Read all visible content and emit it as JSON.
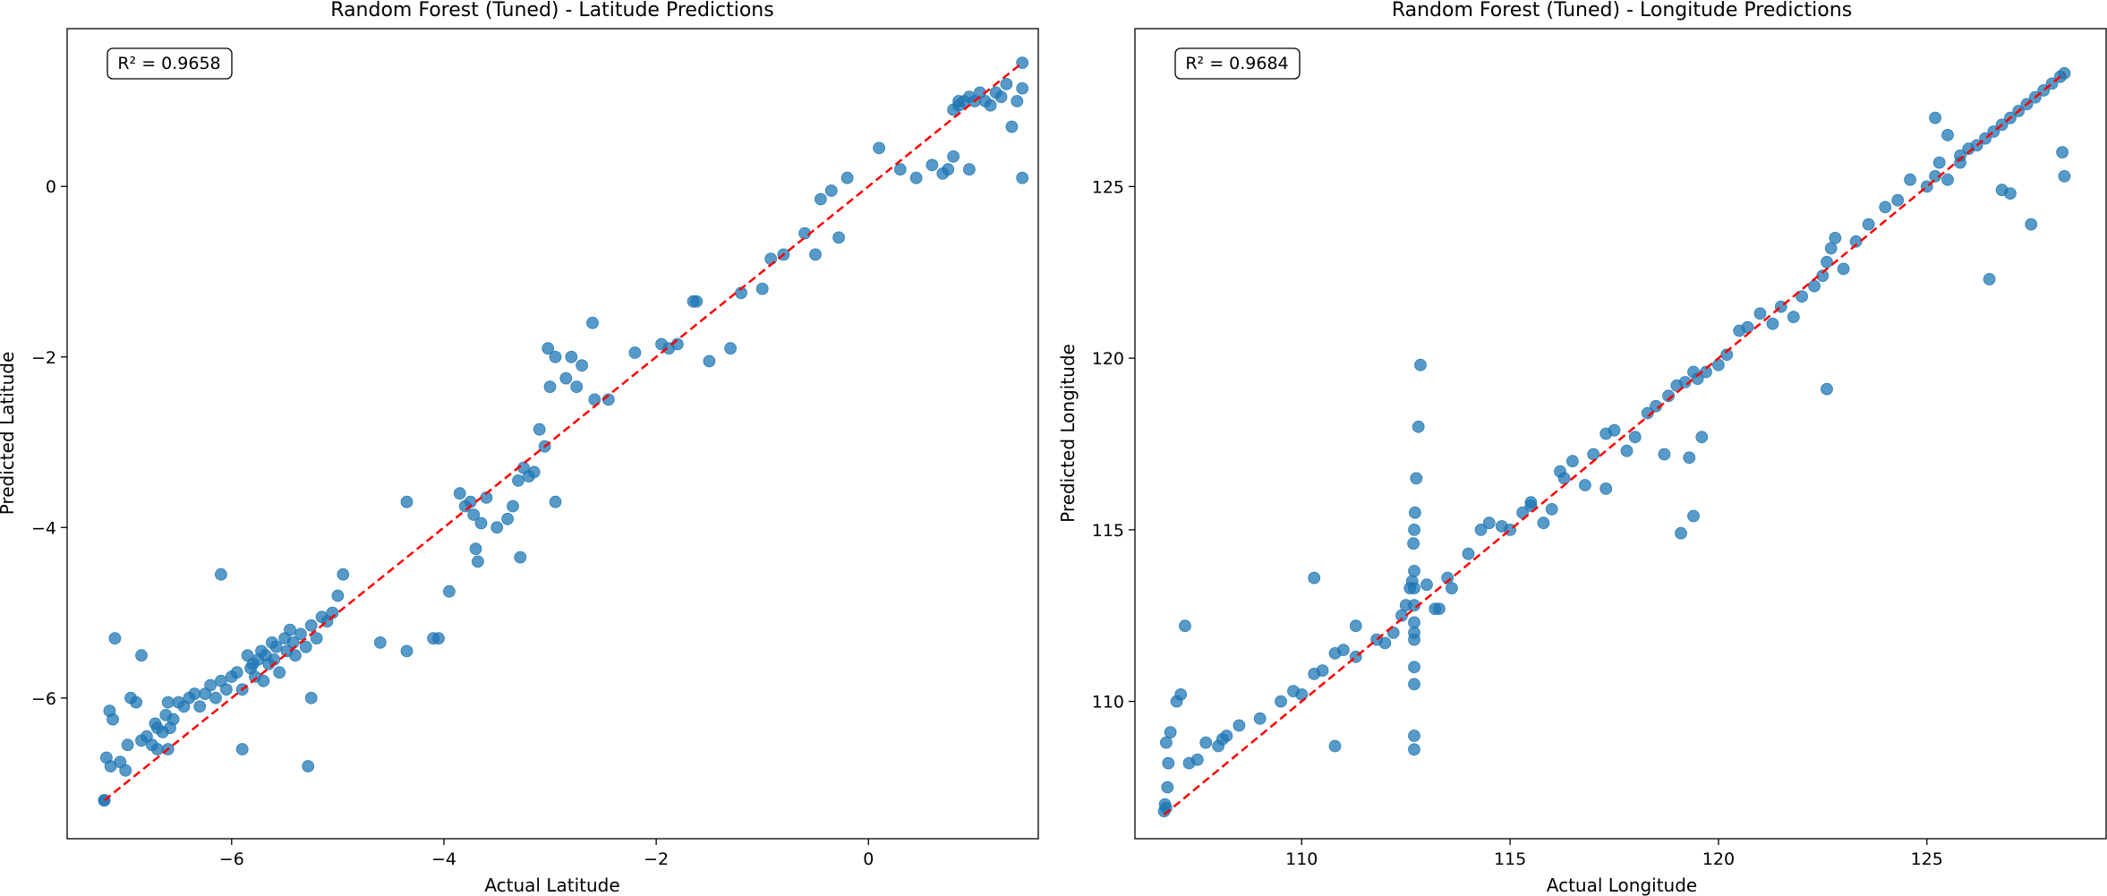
{
  "chart_data": [
    {
      "type": "scatter",
      "title": "Random Forest (Tuned) - Latitude Predictions",
      "xlabel": "Actual Latitude",
      "ylabel": "Predicted Latitude",
      "annotation": "R² = 0.9658",
      "xlim": [
        -7.55,
        1.6
      ],
      "ylim": [
        -7.65,
        1.85
      ],
      "xticks": [
        -6,
        -4,
        -2,
        0
      ],
      "yticks": [
        -6,
        -4,
        -2,
        0
      ],
      "reference_line": {
        "from": [
          -7.2,
          -7.2
        ],
        "to": [
          1.45,
          1.45
        ],
        "color": "#ff0000",
        "style": "dashed"
      },
      "marker_color": "#1f77b4",
      "grid": false,
      "x": [
        -7.2,
        -7.18,
        -7.15,
        -7.14,
        -7.12,
        -7.1,
        -7.05,
        -7.0,
        -6.98,
        -6.95,
        -6.9,
        -6.85,
        -6.8,
        -6.75,
        -6.72,
        -6.7,
        -6.65,
        -6.62,
        -6.6,
        -6.58,
        -6.55,
        -6.5,
        -6.45,
        -6.4,
        -6.35,
        -6.3,
        -6.25,
        -6.2,
        -6.15,
        -6.1,
        -6.05,
        -6.0,
        -5.95,
        -5.9,
        -5.85,
        -5.82,
        -5.8,
        -5.78,
        -5.75,
        -5.72,
        -5.7,
        -5.68,
        -5.65,
        -5.62,
        -5.6,
        -5.58,
        -5.55,
        -5.5,
        -5.48,
        -5.45,
        -5.42,
        -5.4,
        -5.35,
        -5.3,
        -5.25,
        -5.2,
        -5.15,
        -5.1,
        -5.05,
        -5.0,
        -4.95,
        -4.6,
        -4.35,
        -4.1,
        -3.95,
        -3.85,
        -3.8,
        -3.75,
        -3.7,
        -3.65,
        -3.6,
        -3.5,
        -3.4,
        -3.35,
        -3.3,
        -3.25,
        -3.2,
        -3.15,
        -3.1,
        -3.05,
        -3.0,
        -2.95,
        -2.85,
        -2.8,
        -2.7,
        -2.6,
        -2.2,
        -1.95,
        -1.8,
        -1.65,
        -1.5,
        -1.3,
        -1.2,
        -1.0,
        -0.8,
        -0.6,
        -0.5,
        -0.45,
        -0.35,
        -0.2,
        0.1,
        0.3,
        0.45,
        0.6,
        0.7,
        0.8,
        0.85,
        0.9,
        0.95,
        1.0,
        1.05,
        1.1,
        1.15,
        1.2,
        1.25,
        1.3,
        1.35,
        1.4,
        1.45,
        1.45,
        1.45,
        0.95,
        0.85,
        0.75,
        0.8,
        -6.6,
        -6.7,
        -7.2,
        -6.85,
        -5.28,
        -5.9,
        -5.25,
        -6.1,
        -4.35,
        -4.05,
        -3.72,
        -3.68,
        -3.28,
        -3.02,
        -2.95,
        -2.75,
        -2.58,
        -2.45,
        -1.88,
        -1.62,
        -0.28,
        -0.92
      ],
      "y": [
        -7.2,
        -6.7,
        -6.15,
        -6.8,
        -6.25,
        -5.3,
        -6.75,
        -6.85,
        -6.55,
        -6.0,
        -6.05,
        -6.5,
        -6.45,
        -6.55,
        -6.3,
        -6.35,
        -6.4,
        -6.2,
        -6.05,
        -6.35,
        -6.25,
        -6.05,
        -6.1,
        -6.0,
        -5.95,
        -6.1,
        -5.95,
        -5.85,
        -6.0,
        -5.8,
        -5.9,
        -5.75,
        -5.7,
        -5.9,
        -5.5,
        -5.65,
        -5.6,
        -5.75,
        -5.55,
        -5.45,
        -5.8,
        -5.5,
        -5.6,
        -5.35,
        -5.55,
        -5.4,
        -5.7,
        -5.3,
        -5.45,
        -5.2,
        -5.35,
        -5.5,
        -5.25,
        -5.4,
        -5.15,
        -5.3,
        -5.05,
        -5.1,
        -5.0,
        -4.8,
        -4.55,
        -5.35,
        -5.45,
        -5.3,
        -4.75,
        -3.6,
        -3.75,
        -3.7,
        -4.25,
        -3.95,
        -3.65,
        -4.0,
        -3.9,
        -3.75,
        -3.45,
        -3.3,
        -3.4,
        -3.35,
        -2.85,
        -3.05,
        -2.35,
        -2.0,
        -2.25,
        -2.0,
        -2.1,
        -1.6,
        -1.95,
        -1.85,
        -1.85,
        -1.35,
        -2.05,
        -1.9,
        -1.25,
        -1.2,
        -0.8,
        -0.55,
        -0.8,
        -0.15,
        -0.05,
        0.1,
        0.45,
        0.2,
        0.1,
        0.25,
        0.15,
        0.35,
        0.95,
        1.0,
        1.05,
        1.0,
        1.1,
        1.0,
        0.95,
        1.1,
        1.05,
        1.2,
        0.7,
        1.0,
        1.45,
        1.15,
        0.1,
        0.2,
        1.0,
        0.2,
        0.9,
        -6.6,
        -6.6,
        -7.2,
        -5.5,
        -6.8,
        -6.6,
        -6.0,
        -4.55,
        -3.7,
        -5.3,
        -3.85,
        -4.4,
        -4.35,
        -1.9,
        -3.7,
        -2.35,
        -2.5,
        -2.5,
        -1.9,
        -1.35,
        -0.6,
        -0.85
      ]
    },
    {
      "type": "scatter",
      "title": "Random Forest (Tuned) - Longitude Predictions",
      "xlabel": "Actual Longitude",
      "ylabel": "Predicted Longitude",
      "annotation": "R² = 0.9684",
      "xlim": [
        106.0,
        129.3
      ],
      "ylim": [
        106.0,
        129.6
      ],
      "xticks": [
        110,
        115,
        120,
        125
      ],
      "yticks": [
        110,
        115,
        120,
        125
      ],
      "reference_line": {
        "from": [
          106.7,
          106.7
        ],
        "to": [
          128.3,
          128.3
        ],
        "color": "#ff0000",
        "style": "dashed"
      },
      "marker_color": "#1f77b4",
      "grid": false,
      "x": [
        106.7,
        106.72,
        106.75,
        106.78,
        106.8,
        106.85,
        107.0,
        107.1,
        107.3,
        107.5,
        107.7,
        108.0,
        108.2,
        108.5,
        109.0,
        109.5,
        109.8,
        110.0,
        110.3,
        110.5,
        110.8,
        111.0,
        111.3,
        111.8,
        112.0,
        112.2,
        112.4,
        112.5,
        112.6,
        112.65,
        112.68,
        112.7,
        112.72,
        112.75,
        112.8,
        112.85,
        113.0,
        113.2,
        113.5,
        114.0,
        114.3,
        114.5,
        114.8,
        115.0,
        115.3,
        115.5,
        115.8,
        116.0,
        116.3,
        116.5,
        116.8,
        117.0,
        117.3,
        117.5,
        117.8,
        118.0,
        118.3,
        118.5,
        118.8,
        119.0,
        119.2,
        119.4,
        119.5,
        119.7,
        120.0,
        120.2,
        120.5,
        120.7,
        121.0,
        121.3,
        121.5,
        121.8,
        122.0,
        122.3,
        122.5,
        122.6,
        122.7,
        122.8,
        123.0,
        123.3,
        123.6,
        124.0,
        124.3,
        124.6,
        125.0,
        125.2,
        125.3,
        125.5,
        125.8,
        126.0,
        126.2,
        126.4,
        126.6,
        126.8,
        127.0,
        127.2,
        127.4,
        127.6,
        127.8,
        128.0,
        128.2,
        128.3,
        128.25,
        128.3,
        126.5,
        127.5,
        127.0,
        126.8,
        125.2,
        125.5,
        125.8,
        112.7,
        112.7,
        112.7,
        112.7,
        112.7,
        112.7,
        112.7,
        112.7,
        112.7,
        112.7,
        110.3,
        110.8,
        107.2,
        106.75,
        108.1,
        111.3,
        113.6,
        113.3,
        122.6,
        119.4,
        119.3,
        119.1,
        119.6,
        118.7,
        117.3,
        116.2,
        115.5
      ],
      "y": [
        106.8,
        107.0,
        106.9,
        107.5,
        108.2,
        109.1,
        110.0,
        110.2,
        108.2,
        108.3,
        108.8,
        108.7,
        109.0,
        109.3,
        109.5,
        110.0,
        110.3,
        110.2,
        110.8,
        110.9,
        111.4,
        111.5,
        111.3,
        111.8,
        111.7,
        112.0,
        112.5,
        112.8,
        113.3,
        113.5,
        114.6,
        115.0,
        115.5,
        116.5,
        118.0,
        119.8,
        113.4,
        112.7,
        113.6,
        114.3,
        115.0,
        115.2,
        115.1,
        115.0,
        115.5,
        115.8,
        115.2,
        115.6,
        116.5,
        117.0,
        116.3,
        117.2,
        117.8,
        117.9,
        117.3,
        117.7,
        118.4,
        118.6,
        118.9,
        119.2,
        119.3,
        119.6,
        119.4,
        119.6,
        119.8,
        120.1,
        120.8,
        120.9,
        121.3,
        121.0,
        121.5,
        121.2,
        121.8,
        122.1,
        122.4,
        122.8,
        123.2,
        123.5,
        122.6,
        123.4,
        123.9,
        124.4,
        124.6,
        125.2,
        125.0,
        125.3,
        125.7,
        125.2,
        125.9,
        126.1,
        126.2,
        126.4,
        126.6,
        126.8,
        127.0,
        127.2,
        127.4,
        127.6,
        127.8,
        128.0,
        128.2,
        128.3,
        126.0,
        125.3,
        122.3,
        123.9,
        124.8,
        124.9,
        127.0,
        126.5,
        125.7,
        108.6,
        109.0,
        110.5,
        111.0,
        111.8,
        112.0,
        112.3,
        112.8,
        113.3,
        113.8,
        113.6,
        108.7,
        112.2,
        108.8,
        108.9,
        112.2,
        113.3,
        112.7,
        119.1,
        115.4,
        117.1,
        114.9,
        117.7,
        117.2,
        116.2,
        116.7,
        115.7
      ]
    }
  ]
}
